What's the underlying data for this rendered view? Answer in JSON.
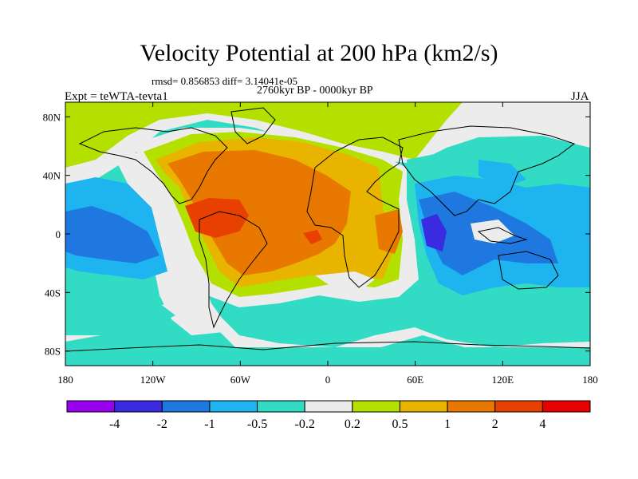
{
  "title": "Velocity Potential at 200 hPa (km2/s)",
  "rmsd_line": "rmsd= 0.856853 diff= 3.14041e-05",
  "period": "2760kyr BP - 0000kyr BP",
  "experiment": "Expt = teWTA-tevta1",
  "season": "JJA",
  "map": {
    "projection": "cylindrical equidistant",
    "lon_range": [
      -180,
      180
    ],
    "lat_range": [
      -90,
      90
    ],
    "x_ticks": [
      {
        "lon": -180,
        "label": "180"
      },
      {
        "lon": -120,
        "label": "120W"
      },
      {
        "lon": -60,
        "label": "60W"
      },
      {
        "lon": 0,
        "label": "0"
      },
      {
        "lon": 60,
        "label": "60E"
      },
      {
        "lon": 120,
        "label": "120E"
      },
      {
        "lon": 180,
        "label": "180"
      }
    ],
    "y_ticks": [
      {
        "lat": 80,
        "label": "80N"
      },
      {
        "lat": 40,
        "label": "40N"
      },
      {
        "lat": 0,
        "label": "0"
      },
      {
        "lat": -40,
        "label": "40S"
      },
      {
        "lat": -80,
        "label": "80S"
      }
    ]
  },
  "colorbar": {
    "colors": [
      "#9a00f0",
      "#3a2ae0",
      "#1e78e0",
      "#1eb4f0",
      "#32dcc4",
      "#ececec",
      "#b4e000",
      "#e8b400",
      "#e87800",
      "#e84000",
      "#e80000"
    ],
    "labels": [
      "-4",
      "-2",
      "-1",
      "-0.5",
      "-0.2",
      "0.2",
      "0.5",
      "1",
      "2",
      "4"
    ]
  },
  "chart_data": {
    "type": "heatmap",
    "title": "Velocity Potential at 200 hPa (km2/s)",
    "variable": "velocity potential difference",
    "level": "200 hPa",
    "units": "km2/s",
    "levels": [
      -4,
      -2,
      -1,
      -0.5,
      -0.2,
      0.2,
      0.5,
      1,
      2,
      4
    ],
    "features": [
      {
        "region": "Central America / Caribbean",
        "approx_value": "2 to 4"
      },
      {
        "region": "Atlantic, Africa, South America",
        "approx_value": "1 to 2"
      },
      {
        "region": "Western Indian Ocean",
        "approx_value": "-2 to -4"
      },
      {
        "region": "Maritime Continent",
        "approx_value": "-1 to -2"
      },
      {
        "region": "Eastern Pacific",
        "approx_value": "-1 to -2"
      }
    ]
  }
}
